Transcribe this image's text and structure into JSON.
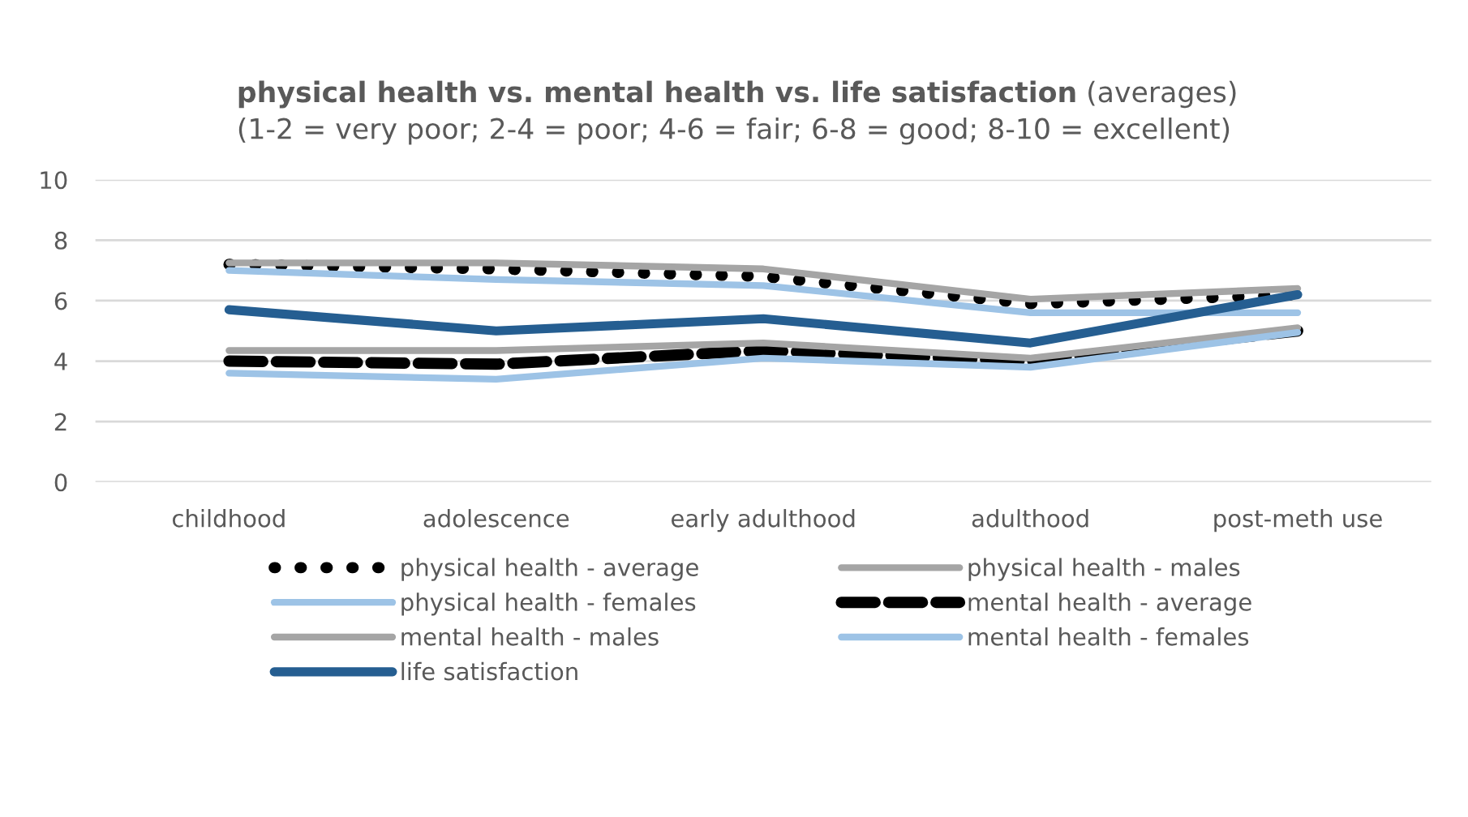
{
  "chart_data": {
    "type": "line",
    "title": "physical health vs. mental health vs. life satisfaction",
    "subtitle": "(averages)",
    "annotations": [
      "(1-2 = very poor; 2-4 = poor; 4-6 = fair; 6-8 = good; 8-10 = excellent)"
    ],
    "categories": [
      "childhood",
      "adolescence",
      "early adulthood",
      "adulthood",
      "post-meth use"
    ],
    "series": [
      {
        "name": "physical health - average",
        "color": "#000000",
        "line_style": "dotted",
        "values": [
          7.2,
          7.05,
          6.8,
          5.9,
          6.2
        ]
      },
      {
        "name": "physical health - males",
        "color": "#a5a5a5",
        "line_style": "solid",
        "values": [
          7.25,
          7.25,
          7.05,
          6.05,
          6.4
        ]
      },
      {
        "name": "physical health - females",
        "color": "#9dc3e6",
        "line_style": "solid",
        "values": [
          7.0,
          6.7,
          6.5,
          5.6,
          5.6
        ]
      },
      {
        "name": "mental health - average",
        "color": "#000000",
        "line_style": "dashed",
        "values": [
          4.0,
          3.9,
          4.35,
          4.0,
          5.0
        ]
      },
      {
        "name": "mental health - males",
        "color": "#a5a5a5",
        "line_style": "solid",
        "values": [
          4.35,
          4.35,
          4.6,
          4.1,
          5.1
        ]
      },
      {
        "name": "mental health - females",
        "color": "#9dc3e6",
        "line_style": "solid",
        "values": [
          3.6,
          3.4,
          4.1,
          3.8,
          4.95
        ]
      },
      {
        "name": "life satisfaction",
        "color": "#255e91",
        "line_style": "solid",
        "values": [
          5.7,
          5.0,
          5.4,
          4.6,
          6.2
        ]
      }
    ],
    "ylim": [
      0,
      10
    ],
    "yticks": [
      0,
      2,
      4,
      6,
      8,
      10
    ],
    "grid": "y",
    "legend": "bottom",
    "marker": "none"
  }
}
